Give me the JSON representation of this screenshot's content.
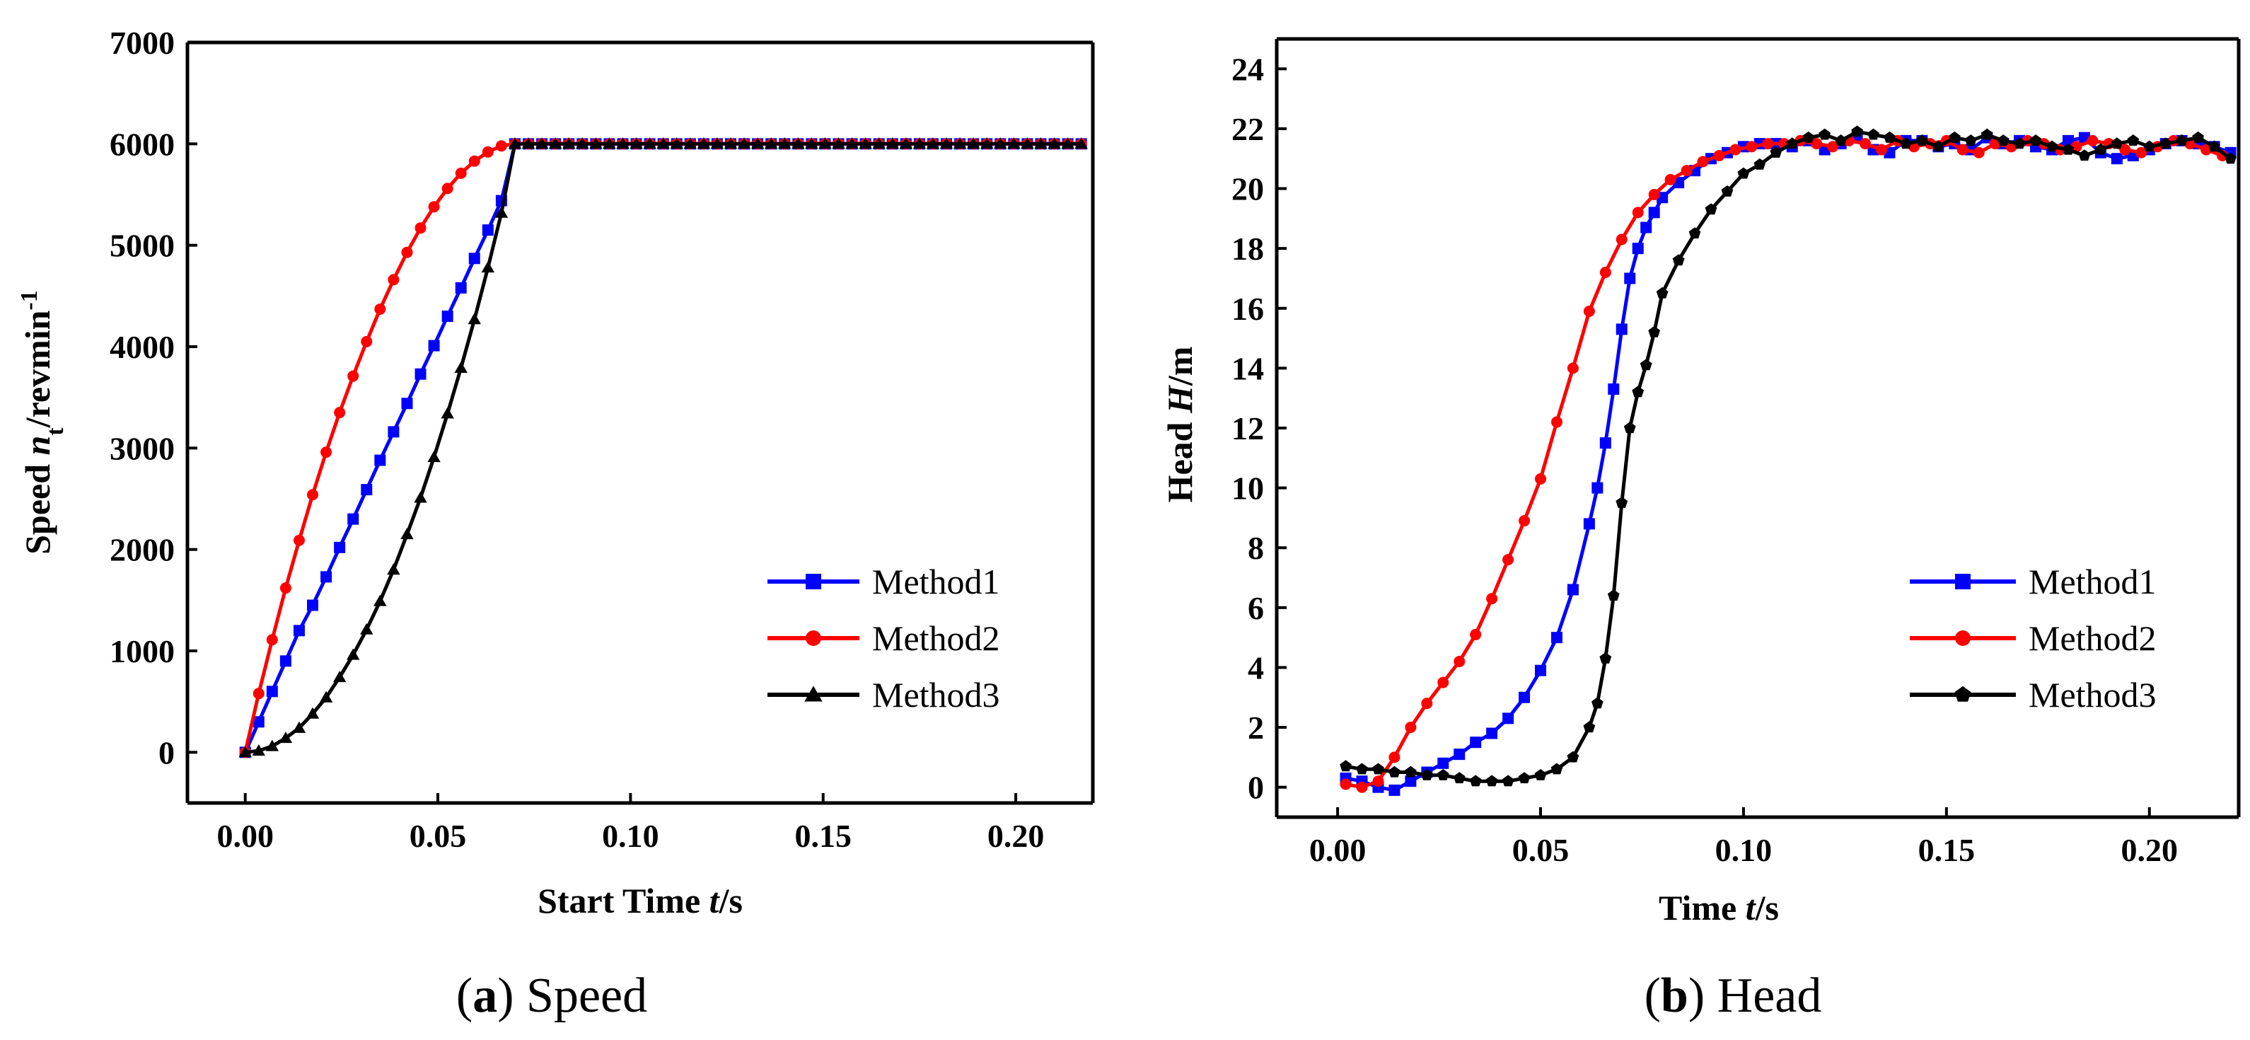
{
  "colors": {
    "method1": "#0000FF",
    "method2": "#FF0000",
    "method3": "#000000"
  },
  "chart_data": [
    {
      "type": "line",
      "caption": {
        "letter": "a",
        "text": "Speed"
      },
      "xlabel": {
        "prefix": "Start Time ",
        "var": "t",
        "suffix": "/s"
      },
      "ylabel": {
        "prefix": "Speed ",
        "var": "n",
        "sub": "t",
        "suffix": "/revmin",
        "sup": "-1"
      },
      "xlim": [
        -0.015,
        0.22
      ],
      "ylim": [
        -500,
        7000
      ],
      "xticks": [
        0.0,
        0.05,
        0.1,
        0.15,
        0.2
      ],
      "xtick_labels": [
        "0.00",
        "0.05",
        "0.10",
        "0.15",
        "0.20"
      ],
      "yticks": [
        0,
        1000,
        2000,
        3000,
        4000,
        5000,
        6000,
        7000
      ],
      "ytick_labels": [
        "0",
        "1000",
        "2000",
        "3000",
        "4000",
        "5000",
        "6000",
        "7000"
      ],
      "legend_position": "lower-right",
      "series": [
        {
          "name": "Method1",
          "marker": "square",
          "color_key": "method1",
          "x": [
            0,
            0.0035,
            0.007,
            0.0105,
            0.014,
            0.0175,
            0.021,
            0.0245,
            0.028,
            0.0315,
            0.035,
            0.0385,
            0.042,
            0.0455,
            0.049,
            0.0525,
            0.056,
            0.0595,
            0.063,
            0.0665,
            0.07,
            0.0735,
            0.077,
            0.0805,
            0.084,
            0.0875,
            0.091,
            0.0945,
            0.098,
            0.1015,
            0.105,
            0.1085,
            0.112,
            0.1155,
            0.119,
            0.1225,
            0.126,
            0.1295,
            0.133,
            0.1365,
            0.14,
            0.1435,
            0.147,
            0.1505,
            0.154,
            0.1575,
            0.161,
            0.1645,
            0.168,
            0.1715,
            0.175,
            0.1785,
            0.182,
            0.1855,
            0.189,
            0.1925,
            0.196,
            0.1995,
            0.203,
            0.2065,
            0.21,
            0.2135,
            0.217
          ],
          "y": [
            0,
            300,
            600,
            900,
            1200,
            1450,
            1730,
            2020,
            2300,
            2590,
            2880,
            3160,
            3440,
            3730,
            4010,
            4300,
            4580,
            4870,
            5150,
            5440,
            6000,
            6000,
            6000,
            6000,
            6000,
            6000,
            6000,
            6000,
            6000,
            6000,
            6000,
            6000,
            6000,
            6000,
            6000,
            6000,
            6000,
            6000,
            6000,
            6000,
            6000,
            6000,
            6000,
            6000,
            6000,
            6000,
            6000,
            6000,
            6000,
            6000,
            6000,
            6000,
            6000,
            6000,
            6000,
            6000,
            6000,
            6000,
            6000,
            6000,
            6000,
            6000,
            6000
          ]
        },
        {
          "name": "Method2",
          "marker": "circle",
          "color_key": "method2",
          "x": [
            0,
            0.0035,
            0.007,
            0.0105,
            0.014,
            0.0175,
            0.021,
            0.0245,
            0.028,
            0.0315,
            0.035,
            0.0385,
            0.042,
            0.0455,
            0.049,
            0.0525,
            0.056,
            0.0595,
            0.063,
            0.0665,
            0.07,
            0.0735,
            0.077,
            0.0805,
            0.084,
            0.0875,
            0.091,
            0.0945,
            0.098,
            0.1015,
            0.105,
            0.1085,
            0.112,
            0.1155,
            0.119,
            0.1225,
            0.126,
            0.1295,
            0.133,
            0.1365,
            0.14,
            0.1435,
            0.147,
            0.1505,
            0.154,
            0.1575,
            0.161,
            0.1645,
            0.168,
            0.1715,
            0.175,
            0.1785,
            0.182,
            0.1855,
            0.189,
            0.1925,
            0.196,
            0.1995,
            0.203,
            0.2065,
            0.21,
            0.2135,
            0.217
          ],
          "y": [
            0,
            580,
            1110,
            1620,
            2090,
            2540,
            2960,
            3350,
            3710,
            4050,
            4370,
            4660,
            4930,
            5170,
            5380,
            5560,
            5710,
            5830,
            5920,
            5980,
            6000,
            6000,
            6000,
            6000,
            6000,
            6000,
            6000,
            6000,
            6000,
            6000,
            6000,
            6000,
            6000,
            6000,
            6000,
            6000,
            6000,
            6000,
            6000,
            6000,
            6000,
            6000,
            6000,
            6000,
            6000,
            6000,
            6000,
            6000,
            6000,
            6000,
            6000,
            6000,
            6000,
            6000,
            6000,
            6000,
            6000,
            6000,
            6000,
            6000,
            6000,
            6000,
            6000
          ]
        },
        {
          "name": "Method3",
          "marker": "triangle",
          "color_key": "method3",
          "x": [
            0,
            0.0035,
            0.007,
            0.0105,
            0.014,
            0.0175,
            0.021,
            0.0245,
            0.028,
            0.0315,
            0.035,
            0.0385,
            0.042,
            0.0455,
            0.049,
            0.0525,
            0.056,
            0.0595,
            0.063,
            0.0665,
            0.07,
            0.0735,
            0.077,
            0.0805,
            0.084,
            0.0875,
            0.091,
            0.0945,
            0.098,
            0.1015,
            0.105,
            0.1085,
            0.112,
            0.1155,
            0.119,
            0.1225,
            0.126,
            0.1295,
            0.133,
            0.1365,
            0.14,
            0.1435,
            0.147,
            0.1505,
            0.154,
            0.1575,
            0.161,
            0.1645,
            0.168,
            0.1715,
            0.175,
            0.1785,
            0.182,
            0.1855,
            0.189,
            0.1925,
            0.196,
            0.1995,
            0.203,
            0.2065,
            0.21,
            0.2135,
            0.217
          ],
          "y": [
            0,
            15,
            60,
            140,
            240,
            380,
            540,
            740,
            960,
            1210,
            1490,
            1800,
            2150,
            2510,
            2910,
            3340,
            3790,
            4270,
            4780,
            5320,
            6000,
            6000,
            6000,
            6000,
            6000,
            6000,
            6000,
            6000,
            6000,
            6000,
            6000,
            6000,
            6000,
            6000,
            6000,
            6000,
            6000,
            6000,
            6000,
            6000,
            6000,
            6000,
            6000,
            6000,
            6000,
            6000,
            6000,
            6000,
            6000,
            6000,
            6000,
            6000,
            6000,
            6000,
            6000,
            6000,
            6000,
            6000,
            6000,
            6000,
            6000,
            6000,
            6000
          ]
        }
      ]
    },
    {
      "type": "line",
      "caption": {
        "letter": "b",
        "text": "Head"
      },
      "xlabel": {
        "prefix": "Time ",
        "var": "t",
        "suffix": "/s"
      },
      "ylabel": {
        "prefix": "Head ",
        "var": "H",
        "suffix": "/m"
      },
      "xlim": [
        -0.015,
        0.222
      ],
      "ylim": [
        -1,
        25
      ],
      "xticks": [
        0.0,
        0.05,
        0.1,
        0.15,
        0.2
      ],
      "xtick_labels": [
        "0.00",
        "0.05",
        "0.10",
        "0.15",
        "0.20"
      ],
      "yticks": [
        0,
        2,
        4,
        6,
        8,
        10,
        12,
        14,
        16,
        18,
        20,
        22,
        24
      ],
      "ytick_labels": [
        "0",
        "2",
        "4",
        "6",
        "8",
        "10",
        "12",
        "14",
        "16",
        "18",
        "20",
        "22",
        "24"
      ],
      "legend_position": "lower-right",
      "series": [
        {
          "name": "Method1",
          "marker": "square",
          "color_key": "method1",
          "x": [
            0.002,
            0.006,
            0.01,
            0.014,
            0.018,
            0.022,
            0.026,
            0.03,
            0.034,
            0.038,
            0.042,
            0.046,
            0.05,
            0.054,
            0.058,
            0.062,
            0.064,
            0.066,
            0.068,
            0.07,
            0.072,
            0.074,
            0.076,
            0.078,
            0.08,
            0.084,
            0.088,
            0.092,
            0.096,
            0.1,
            0.104,
            0.108,
            0.112,
            0.116,
            0.12,
            0.124,
            0.128,
            0.132,
            0.136,
            0.14,
            0.144,
            0.148,
            0.152,
            0.156,
            0.16,
            0.164,
            0.168,
            0.172,
            0.176,
            0.18,
            0.184,
            0.188,
            0.192,
            0.196,
            0.2,
            0.204,
            0.208,
            0.212,
            0.216,
            0.22
          ],
          "y": [
            0.3,
            0.2,
            0.0,
            -0.1,
            0.2,
            0.5,
            0.8,
            1.1,
            1.5,
            1.8,
            2.3,
            3.0,
            3.9,
            5.0,
            6.6,
            8.8,
            10.0,
            11.5,
            13.3,
            15.3,
            17.0,
            18.0,
            18.7,
            19.2,
            19.7,
            20.2,
            20.6,
            21.0,
            21.2,
            21.4,
            21.5,
            21.5,
            21.4,
            21.6,
            21.3,
            21.5,
            21.7,
            21.3,
            21.2,
            21.6,
            21.6,
            21.4,
            21.5,
            21.3,
            21.7,
            21.5,
            21.6,
            21.4,
            21.3,
            21.6,
            21.7,
            21.2,
            21.0,
            21.1,
            21.3,
            21.5,
            21.6,
            21.5,
            21.4,
            21.2
          ]
        },
        {
          "name": "Method2",
          "marker": "circle",
          "color_key": "method2",
          "x": [
            0.002,
            0.006,
            0.01,
            0.014,
            0.018,
            0.022,
            0.026,
            0.03,
            0.034,
            0.038,
            0.042,
            0.046,
            0.05,
            0.054,
            0.058,
            0.062,
            0.066,
            0.07,
            0.074,
            0.078,
            0.082,
            0.086,
            0.09,
            0.094,
            0.098,
            0.102,
            0.106,
            0.11,
            0.114,
            0.118,
            0.122,
            0.126,
            0.13,
            0.134,
            0.138,
            0.142,
            0.146,
            0.15,
            0.154,
            0.158,
            0.162,
            0.166,
            0.17,
            0.174,
            0.178,
            0.182,
            0.186,
            0.19,
            0.194,
            0.198,
            0.202,
            0.206,
            0.21,
            0.214,
            0.218
          ],
          "y": [
            0.1,
            0.0,
            0.2,
            1.0,
            2.0,
            2.8,
            3.5,
            4.2,
            5.1,
            6.3,
            7.6,
            8.9,
            10.3,
            12.2,
            14.0,
            15.9,
            17.2,
            18.3,
            19.2,
            19.8,
            20.3,
            20.6,
            20.9,
            21.1,
            21.3,
            21.4,
            21.5,
            21.5,
            21.6,
            21.5,
            21.4,
            21.6,
            21.5,
            21.3,
            21.6,
            21.4,
            21.5,
            21.6,
            21.3,
            21.2,
            21.5,
            21.4,
            21.6,
            21.5,
            21.3,
            21.4,
            21.6,
            21.5,
            21.3,
            21.2,
            21.4,
            21.6,
            21.5,
            21.3,
            21.1
          ]
        },
        {
          "name": "Method3",
          "marker": "pentagon",
          "color_key": "method3",
          "x": [
            0.002,
            0.006,
            0.01,
            0.014,
            0.018,
            0.022,
            0.026,
            0.03,
            0.034,
            0.038,
            0.042,
            0.046,
            0.05,
            0.054,
            0.058,
            0.062,
            0.064,
            0.066,
            0.068,
            0.07,
            0.072,
            0.074,
            0.076,
            0.078,
            0.08,
            0.084,
            0.088,
            0.092,
            0.096,
            0.1,
            0.104,
            0.108,
            0.112,
            0.116,
            0.12,
            0.124,
            0.128,
            0.132,
            0.136,
            0.14,
            0.144,
            0.148,
            0.152,
            0.156,
            0.16,
            0.164,
            0.168,
            0.172,
            0.176,
            0.18,
            0.184,
            0.188,
            0.192,
            0.196,
            0.2,
            0.204,
            0.208,
            0.212,
            0.216,
            0.22
          ],
          "y": [
            0.7,
            0.6,
            0.6,
            0.5,
            0.5,
            0.4,
            0.4,
            0.3,
            0.2,
            0.2,
            0.2,
            0.3,
            0.4,
            0.6,
            1.0,
            2.0,
            2.8,
            4.3,
            6.4,
            9.5,
            12.0,
            13.2,
            14.1,
            15.2,
            16.5,
            17.6,
            18.5,
            19.3,
            19.9,
            20.5,
            20.8,
            21.2,
            21.5,
            21.7,
            21.8,
            21.6,
            21.9,
            21.8,
            21.7,
            21.5,
            21.6,
            21.4,
            21.7,
            21.6,
            21.8,
            21.6,
            21.5,
            21.6,
            21.4,
            21.3,
            21.1,
            21.3,
            21.5,
            21.6,
            21.4,
            21.5,
            21.6,
            21.7,
            21.4,
            21.0
          ]
        }
      ]
    }
  ]
}
